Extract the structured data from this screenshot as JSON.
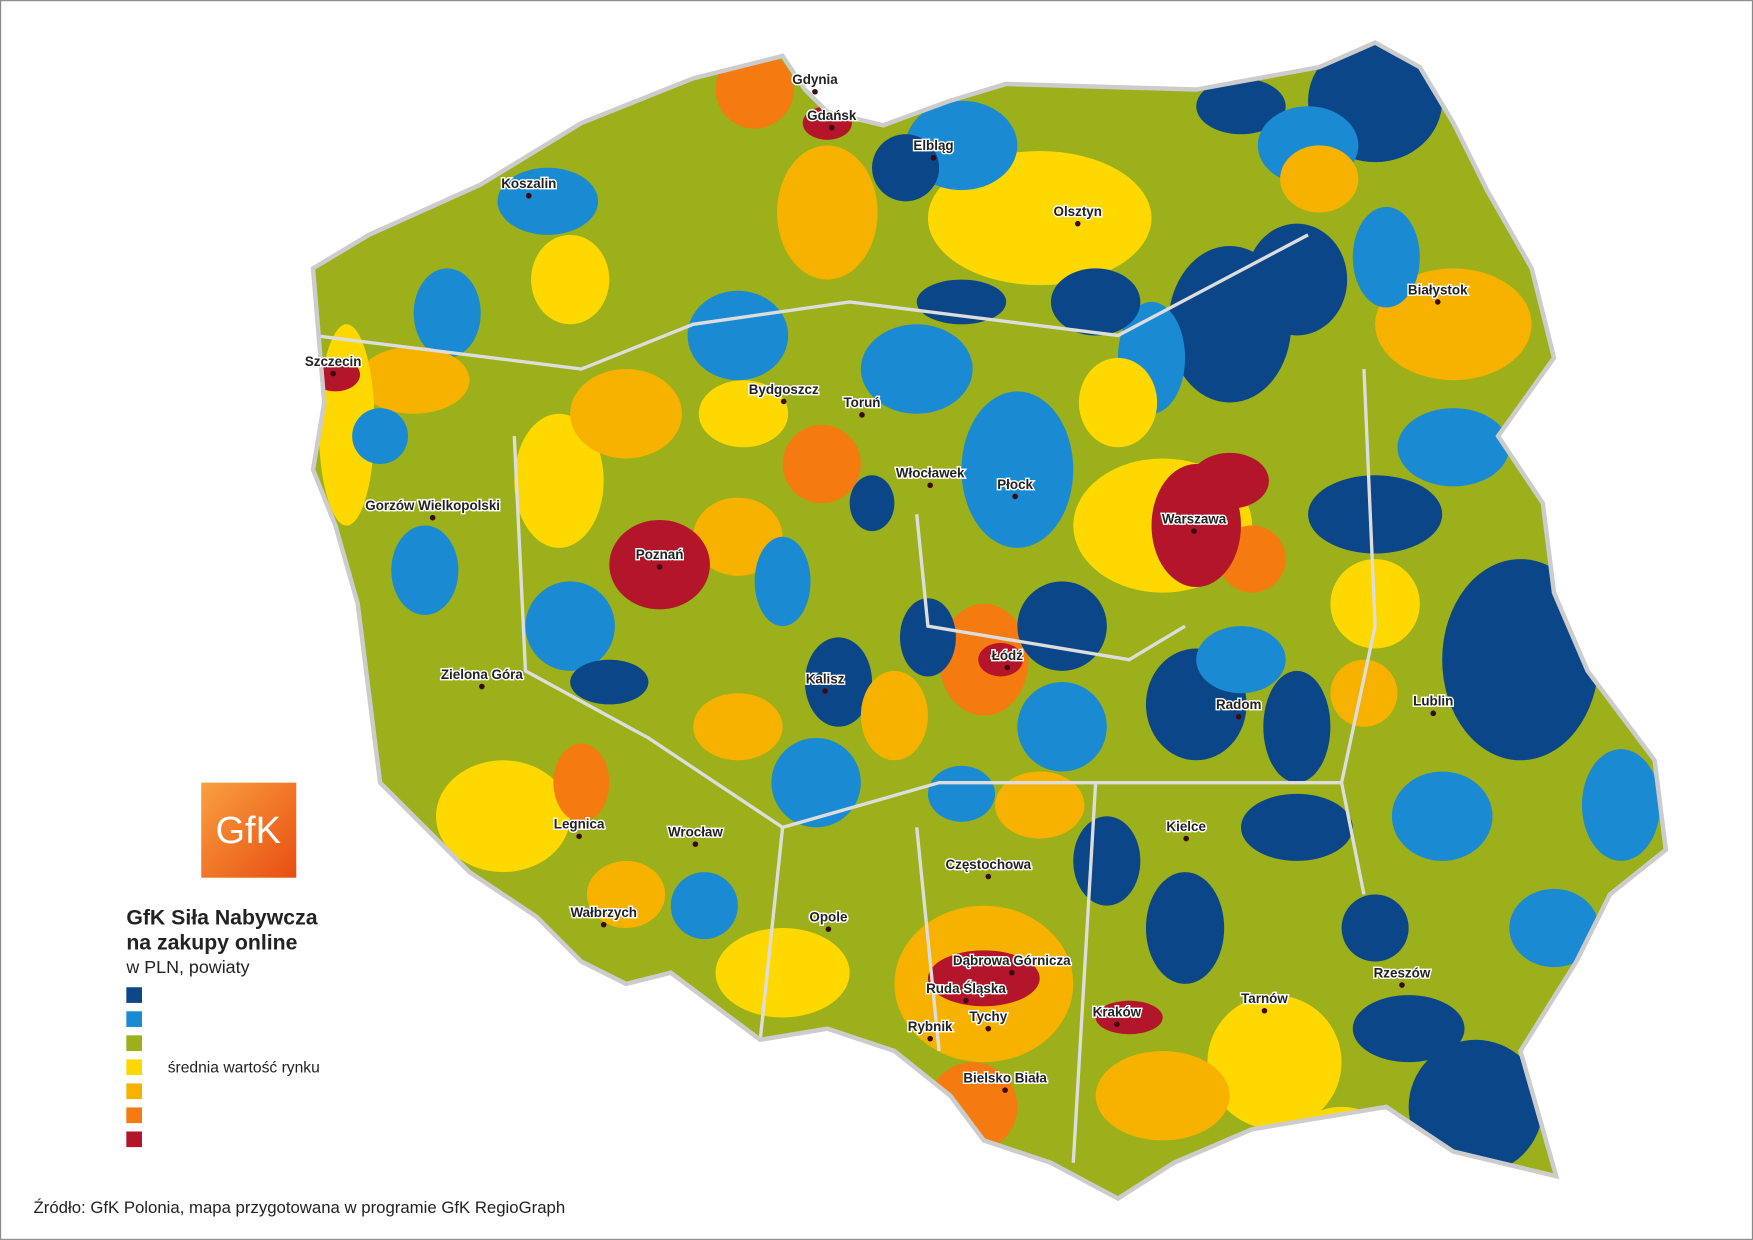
{
  "logo": "GfK",
  "legend": {
    "title": [
      "GfK Siła Nabywcza",
      "na zakupy online"
    ],
    "subtitle": "w PLN, powiaty",
    "items": [
      {
        "color": "#0b4689"
      },
      {
        "color": "#1a8bd2"
      },
      {
        "color": "#9bb01b"
      },
      {
        "color": "#ffd800",
        "label": "średnia wartość rynku"
      },
      {
        "color": "#f7b200"
      },
      {
        "color": "#f57a0f"
      },
      {
        "color": "#b3152b"
      }
    ]
  },
  "cities": [
    "Gdynia",
    "Gdańsk",
    "Elbląg",
    "Koszalin",
    "Olsztyn",
    "Białystok",
    "Szczecin",
    "Bydgoszcz",
    "Toruń",
    "Włocławek",
    "Płock",
    "Gorzów Wielkopolski",
    "Warszawa",
    "Poznań",
    "Łódź",
    "Kalisz",
    "Zielona Góra",
    "Radom",
    "Lublin",
    "Legnica",
    "Wrocław",
    "Kielce",
    "Częstochowa",
    "Wałbrzych",
    "Opole",
    "Dąbrowa Górnicza",
    "Ruda Śląska",
    "Tychy",
    "Rybnik",
    "Kraków",
    "Tarnów",
    "Rzeszów",
    "Bielsko Biała"
  ],
  "source": "Źródło: GfK Polonia, mapa przygotowana w programie GfK RegioGraph"
}
